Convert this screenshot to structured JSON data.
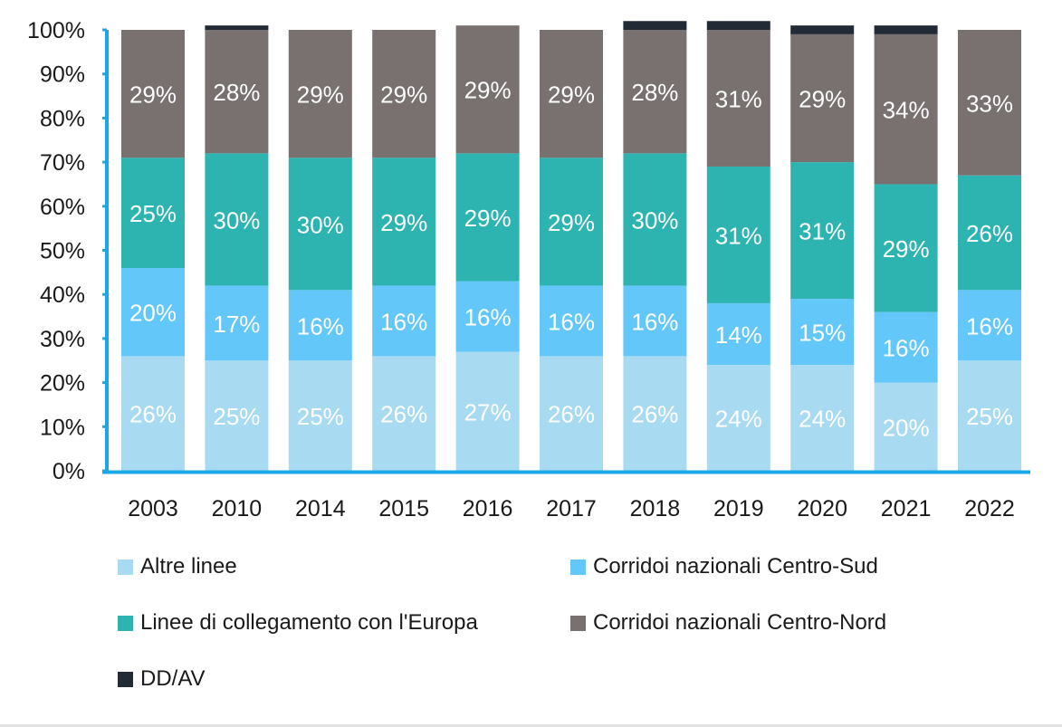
{
  "chart_data": {
    "type": "bar",
    "stacked": true,
    "percent": true,
    "title": "",
    "xlabel": "",
    "ylabel": "",
    "ylim": [
      0,
      100
    ],
    "yticks": [
      "0%",
      "10%",
      "20%",
      "30%",
      "40%",
      "50%",
      "60%",
      "70%",
      "80%",
      "90%",
      "100%"
    ],
    "grid": false,
    "legend_position": "bottom",
    "categories": [
      "2003",
      "2010",
      "2014",
      "2015",
      "2016",
      "2017",
      "2018",
      "2019",
      "2020",
      "2021",
      "2022"
    ],
    "series": [
      {
        "name": "Altre linee",
        "color": "#a8dbf1",
        "values": [
          26,
          25,
          25,
          26,
          27,
          26,
          26,
          24,
          24,
          20,
          25
        ],
        "labels": [
          "26%",
          "25%",
          "25%",
          "26%",
          "27%",
          "26%",
          "26%",
          "24%",
          "24%",
          "20%",
          "25%"
        ]
      },
      {
        "name": "Corridoi nazionali Centro-Sud",
        "color": "#63c7f9",
        "values": [
          20,
          17,
          16,
          16,
          16,
          16,
          16,
          14,
          15,
          16,
          16
        ],
        "labels": [
          "20%",
          "17%",
          "16%",
          "16%",
          "16%",
          "16%",
          "16%",
          "14%",
          "15%",
          "16%",
          "16%"
        ]
      },
      {
        "name": "Linee di collegamento con l'Europa",
        "color": "#2db4b1",
        "values": [
          25,
          30,
          30,
          29,
          29,
          29,
          30,
          31,
          31,
          29,
          26
        ],
        "labels": [
          "25%",
          "30%",
          "30%",
          "29%",
          "29%",
          "29%",
          "30%",
          "31%",
          "31%",
          "29%",
          "26%"
        ]
      },
      {
        "name": "Corridoi nazionali Centro-Nord",
        "color": "#787170",
        "values": [
          29,
          28,
          29,
          29,
          29,
          29,
          28,
          31,
          29,
          34,
          33
        ],
        "labels": [
          "29%",
          "28%",
          "29%",
          "29%",
          "29%",
          "29%",
          "28%",
          "31%",
          "29%",
          "34%",
          "33%"
        ]
      },
      {
        "name": "DD/AV",
        "color": "#222a35",
        "values": [
          0,
          1,
          0,
          0,
          0,
          0,
          2,
          2,
          2,
          2,
          0
        ],
        "labels": [
          "",
          "",
          "",
          "",
          "",
          "",
          "",
          "",
          "",
          "",
          ""
        ]
      }
    ]
  },
  "axis_color": "#1aa7e8",
  "legend": {
    "items": [
      {
        "label": "Altre linee",
        "color": "#a8dbf1"
      },
      {
        "label": "Corridoi nazionali Centro-Sud",
        "color": "#63c7f9"
      },
      {
        "label": "Linee di collegamento con l'Europa",
        "color": "#2db4b1"
      },
      {
        "label": "Corridoi nazionali Centro-Nord",
        "color": "#787170"
      },
      {
        "label": "DD/AV",
        "color": "#222a35"
      }
    ]
  }
}
